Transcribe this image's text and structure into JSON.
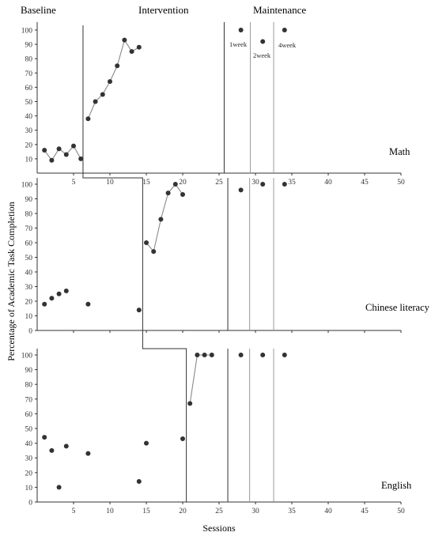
{
  "phases": [
    "Baseline",
    "Intervention",
    "Maintenance"
  ],
  "maintenance_annotations": [
    "1week",
    "2week",
    "4week"
  ],
  "ylabel": "Percentage of Academic Task Completion",
  "xlabel": "Sessions",
  "chart_data": [
    {
      "type": "line",
      "panel": "Math",
      "xlim": [
        0,
        50
      ],
      "ylim": [
        0,
        100
      ],
      "x_ticks": [
        5,
        10,
        15,
        20,
        25,
        30,
        35,
        40,
        45,
        50
      ],
      "y_ticks": [
        10,
        20,
        30,
        40,
        50,
        60,
        70,
        80,
        90,
        100
      ],
      "phase_change_after_session": 6.3,
      "baseline": [
        [
          1,
          16
        ],
        [
          2,
          9
        ],
        [
          3,
          17
        ],
        [
          4,
          13
        ],
        [
          5,
          19
        ],
        [
          6,
          10
        ]
      ],
      "intervention": [
        [
          7,
          38
        ],
        [
          8,
          50
        ],
        [
          9,
          55
        ],
        [
          10,
          64
        ],
        [
          11,
          75
        ],
        [
          12,
          93
        ],
        [
          13,
          85
        ],
        [
          14,
          88
        ]
      ],
      "maintenance_lines": [
        25.7,
        29.3,
        32.5
      ],
      "maintenance": [
        [
          28,
          100
        ],
        [
          31,
          92
        ],
        [
          34,
          100
        ]
      ]
    },
    {
      "type": "line",
      "panel": "Chinese literacy",
      "xlim": [
        0,
        50
      ],
      "ylim": [
        0,
        100
      ],
      "y_ticks": [
        0,
        10,
        20,
        30,
        40,
        50,
        60,
        70,
        80,
        90,
        100
      ],
      "phase_change_after_session": 14.5,
      "baseline": [
        [
          1,
          18
        ],
        [
          2,
          22
        ],
        [
          3,
          25
        ],
        [
          4,
          27
        ],
        [
          7,
          18
        ],
        [
          14,
          14
        ]
      ],
      "intervention": [
        [
          15,
          60
        ],
        [
          16,
          54
        ],
        [
          17,
          76
        ],
        [
          18,
          94
        ],
        [
          19,
          100
        ],
        [
          20,
          93
        ]
      ],
      "maintenance_lines": [
        26.2,
        29.2,
        32.5
      ],
      "maintenance": [
        [
          28,
          96
        ],
        [
          31,
          100
        ],
        [
          34,
          100
        ]
      ]
    },
    {
      "type": "line",
      "panel": "English",
      "xlim": [
        0,
        50
      ],
      "ylim": [
        0,
        100
      ],
      "y_ticks": [
        0,
        10,
        20,
        30,
        40,
        50,
        60,
        70,
        80,
        90,
        100
      ],
      "x_ticks": [
        5,
        10,
        15,
        20,
        25,
        30,
        35,
        40,
        45,
        50
      ],
      "phase_change_after_session": 20.5,
      "baseline": [
        [
          1,
          44
        ],
        [
          2,
          35
        ],
        [
          3,
          10
        ],
        [
          4,
          38
        ],
        [
          7,
          33
        ],
        [
          14,
          14
        ],
        [
          15,
          40
        ],
        [
          20,
          43
        ]
      ],
      "intervention": [
        [
          21,
          67
        ],
        [
          22,
          100
        ],
        [
          23,
          100
        ],
        [
          24,
          100
        ]
      ],
      "maintenance_lines": [
        26.2,
        29.2,
        32.5
      ],
      "maintenance": [
        [
          28,
          100
        ],
        [
          31,
          100
        ],
        [
          34,
          100
        ]
      ]
    }
  ]
}
